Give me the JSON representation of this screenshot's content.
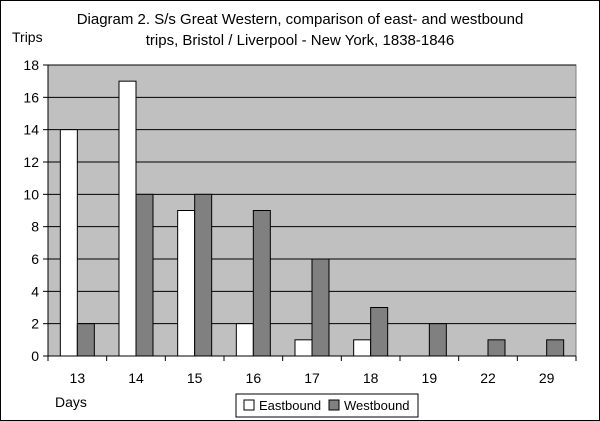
{
  "chart_data": {
    "type": "bar",
    "title": "Diagram 2. S/s Great Western, comparison of east- and westbound trips, Bristol / Liverpool - New York, 1838-1846",
    "title_lines": [
      "Diagram 2. S/s Great Western, comparison of east- and westbound",
      "trips, Bristol / Liverpool - New York, 1838-1846"
    ],
    "xlabel": "Days",
    "ylabel": "Trips",
    "categories": [
      "13",
      "14",
      "15",
      "16",
      "17",
      "18",
      "19",
      "22",
      "29"
    ],
    "series": [
      {
        "name": "Eastbound",
        "values": [
          14,
          17,
          9,
          2,
          1,
          1,
          0,
          0,
          0
        ],
        "color": "#ffffff"
      },
      {
        "name": "Westbound",
        "values": [
          2,
          10,
          10,
          9,
          6,
          3,
          2,
          1,
          1
        ],
        "color": "#808080"
      }
    ],
    "ylim": [
      0,
      18
    ],
    "yticks": [
      "0",
      "2",
      "4",
      "6",
      "8",
      "10",
      "12",
      "14",
      "16",
      "18"
    ],
    "grid": true,
    "plot_background": "#c0c0c0",
    "legend_position": "bottom-center"
  }
}
